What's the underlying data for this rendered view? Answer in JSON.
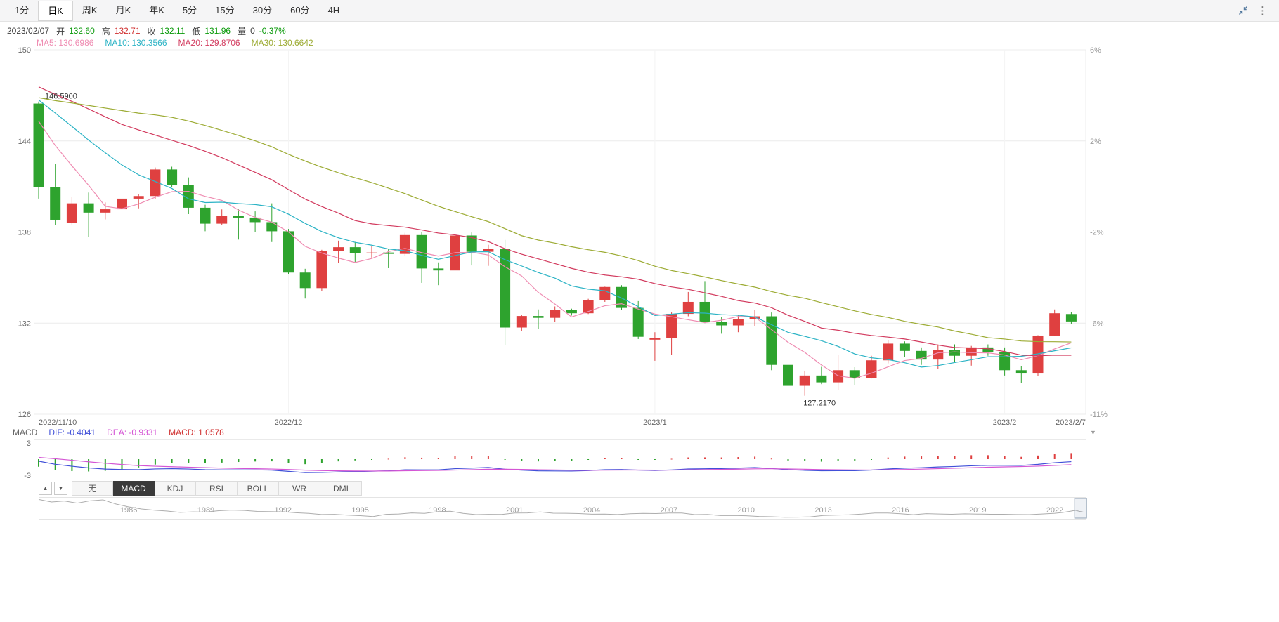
{
  "toolbar": {
    "tabs": [
      {
        "label": "1分",
        "active": false
      },
      {
        "label": "日K",
        "active": true
      },
      {
        "label": "周K",
        "active": false
      },
      {
        "label": "月K",
        "active": false
      },
      {
        "label": "年K",
        "active": false
      },
      {
        "label": "5分",
        "active": false
      },
      {
        "label": "15分",
        "active": false
      },
      {
        "label": "30分",
        "active": false
      },
      {
        "label": "60分",
        "active": false
      },
      {
        "label": "4H",
        "active": false
      }
    ],
    "more_glyph": "⋮"
  },
  "info_bar": {
    "date": "2023/02/07",
    "fields": [
      {
        "key": "open",
        "label": "开",
        "value": "132.60",
        "tone": "down"
      },
      {
        "key": "high",
        "label": "高",
        "value": "132.71",
        "tone": "up"
      },
      {
        "key": "close",
        "label": "收",
        "value": "132.11",
        "tone": "down"
      },
      {
        "key": "low",
        "label": "低",
        "value": "131.96",
        "tone": "down"
      },
      {
        "key": "volume",
        "label": "量",
        "value": "0",
        "tone": "neutral"
      }
    ],
    "change": {
      "value": "-0.37%",
      "tone": "down"
    }
  },
  "ma_bar": [
    {
      "label": "MA5:",
      "value": "130.6986",
      "color": "#ef8cb2"
    },
    {
      "label": "MA10:",
      "value": "130.3566",
      "color": "#2bb3c5"
    },
    {
      "label": "MA20:",
      "value": "129.8706",
      "color": "#d23a5e"
    },
    {
      "label": "MA30:",
      "value": "130.6642",
      "color": "#9cab33"
    }
  ],
  "colors": {
    "up": "#df4040",
    "down": "#2ea32e",
    "text_up": "#d03030",
    "text_down": "#0a9a0a",
    "neutral": "#3c3c3c",
    "ma5": "#ef8cb2",
    "ma10": "#2bb3c5",
    "ma20": "#d23a5e",
    "ma30": "#9cab33",
    "dif": "#4150d8",
    "dea": "#d455d4",
    "macd_value": "#d03030",
    "axis": "#666666",
    "axis_right": "#999999",
    "grid": "#ececec"
  },
  "chart_data": {
    "type": "candlestick",
    "ylim": [
      126,
      150
    ],
    "y_axis_labels": [
      "150",
      "144",
      "138",
      "132",
      "126"
    ],
    "y_axis_right_labels": [
      "6%",
      "2%",
      "-2%",
      "-6%",
      "-11%"
    ],
    "x_labels": [
      {
        "label": "2022/11/10",
        "index": 0,
        "align": "start"
      },
      {
        "label": "2022/12",
        "index": 15,
        "align": "middle"
      },
      {
        "label": "2023/1",
        "index": 37,
        "align": "middle"
      },
      {
        "label": "2023/2",
        "index": 58,
        "align": "middle"
      },
      {
        "label": "2023/2/7",
        "index": 62,
        "align": "end"
      }
    ],
    "annotations": {
      "high": "146.5900",
      "low": "127.2170"
    },
    "candle_format": [
      "date",
      "open",
      "high",
      "low",
      "close"
    ],
    "candles": [
      [
        "2022/11/10",
        146.46,
        146.59,
        140.2,
        140.98
      ],
      [
        "2022/11/11",
        140.98,
        142.48,
        138.46,
        138.81
      ],
      [
        "2022/11/14",
        138.6,
        140.3,
        138.5,
        139.89
      ],
      [
        "2022/11/15",
        139.89,
        140.6,
        137.67,
        139.28
      ],
      [
        "2022/11/16",
        139.28,
        139.95,
        138.83,
        139.5
      ],
      [
        "2022/11/17",
        139.5,
        140.4,
        139.07,
        140.2
      ],
      [
        "2022/11/18",
        140.2,
        140.49,
        139.56,
        140.37
      ],
      [
        "2022/11/21",
        140.37,
        142.25,
        140.15,
        142.12
      ],
      [
        "2022/11/22",
        142.12,
        142.3,
        140.95,
        141.1
      ],
      [
        "2022/11/23",
        141.1,
        141.6,
        139.18,
        139.6
      ],
      [
        "2022/11/24",
        139.6,
        139.8,
        138.05,
        138.55
      ],
      [
        "2022/11/25",
        138.55,
        139.49,
        138.46,
        139.05
      ],
      [
        "2022/11/28",
        139.05,
        139.5,
        137.5,
        138.95
      ],
      [
        "2022/11/29",
        138.95,
        139.36,
        138.0,
        138.65
      ],
      [
        "2022/11/30",
        138.65,
        139.89,
        137.34,
        138.05
      ],
      [
        "2022/12/01",
        138.05,
        138.2,
        135.25,
        135.33
      ],
      [
        "2022/12/02",
        135.33,
        135.58,
        133.62,
        134.31
      ],
      [
        "2022/12/05",
        134.31,
        136.83,
        134.13,
        136.73
      ],
      [
        "2022/12/06",
        136.73,
        137.43,
        135.95,
        137.0
      ],
      [
        "2022/12/07",
        137.0,
        137.35,
        136.02,
        136.6
      ],
      [
        "2022/12/08",
        136.6,
        137.05,
        136.32,
        136.65
      ],
      [
        "2022/12/09",
        136.65,
        136.9,
        135.62,
        136.56
      ],
      [
        "2022/12/12",
        136.56,
        137.95,
        136.4,
        137.8
      ],
      [
        "2022/12/13",
        137.8,
        137.98,
        134.65,
        135.6
      ],
      [
        "2022/12/14",
        135.6,
        136.0,
        134.5,
        135.47
      ],
      [
        "2022/12/15",
        135.47,
        138.1,
        135.0,
        137.77
      ],
      [
        "2022/12/16",
        137.77,
        137.97,
        135.8,
        136.7
      ],
      [
        "2022/12/19",
        136.7,
        137.16,
        135.77,
        136.9
      ],
      [
        "2022/12/20",
        136.9,
        137.48,
        130.58,
        131.71
      ],
      [
        "2022/12/21",
        131.71,
        132.55,
        131.5,
        132.47
      ],
      [
        "2022/12/22",
        132.47,
        132.9,
        131.6,
        132.35
      ],
      [
        "2022/12/23",
        132.35,
        133.1,
        132.1,
        132.85
      ],
      [
        "2022/12/26",
        132.85,
        132.95,
        132.5,
        132.65
      ],
      [
        "2022/12/27",
        132.65,
        133.6,
        132.6,
        133.5
      ],
      [
        "2022/12/28",
        133.5,
        134.4,
        133.4,
        134.38
      ],
      [
        "2022/12/29",
        134.38,
        134.5,
        132.87,
        133.0
      ],
      [
        "2022/12/30",
        133.0,
        133.45,
        130.95,
        131.1
      ],
      [
        "2023/01/03",
        130.91,
        131.4,
        129.52,
        131.01
      ],
      [
        "2023/01/04",
        131.01,
        132.7,
        129.9,
        132.61
      ],
      [
        "2023/01/05",
        132.61,
        134.05,
        132.45,
        133.4
      ],
      [
        "2023/01/06",
        133.4,
        134.77,
        132.0,
        132.08
      ],
      [
        "2023/01/09",
        132.08,
        132.4,
        131.3,
        131.85
      ],
      [
        "2023/01/10",
        131.85,
        132.5,
        131.4,
        132.25
      ],
      [
        "2023/01/11",
        132.25,
        132.85,
        131.8,
        132.45
      ],
      [
        "2023/01/12",
        132.45,
        132.7,
        128.9,
        129.25
      ],
      [
        "2023/01/13",
        129.25,
        129.5,
        127.46,
        127.87
      ],
      [
        "2023/01/16",
        127.87,
        128.87,
        127.217,
        128.55
      ],
      [
        "2023/01/17",
        128.55,
        129.12,
        127.98,
        128.1
      ],
      [
        "2023/01/18",
        128.1,
        129.9,
        127.57,
        128.9
      ],
      [
        "2023/01/19",
        128.9,
        129.1,
        127.9,
        128.4
      ],
      [
        "2023/01/20",
        128.4,
        129.85,
        128.35,
        129.55
      ],
      [
        "2023/01/23",
        129.55,
        130.89,
        129.35,
        130.65
      ],
      [
        "2023/01/24",
        130.65,
        130.8,
        129.75,
        130.17
      ],
      [
        "2023/01/25",
        130.17,
        130.4,
        129.25,
        129.6
      ],
      [
        "2023/01/26",
        129.6,
        130.6,
        129.0,
        130.25
      ],
      [
        "2023/01/27",
        130.25,
        130.6,
        129.4,
        129.85
      ],
      [
        "2023/01/30",
        129.85,
        130.5,
        129.2,
        130.4
      ],
      [
        "2023/01/31",
        130.4,
        130.6,
        129.85,
        130.1
      ],
      [
        "2023/02/01",
        130.1,
        130.4,
        128.55,
        128.9
      ],
      [
        "2023/02/02",
        128.9,
        129.15,
        128.08,
        128.68
      ],
      [
        "2023/02/03",
        128.68,
        131.2,
        128.5,
        131.18
      ],
      [
        "2023/02/06",
        131.18,
        132.9,
        131.15,
        132.65
      ],
      [
        "2023/02/07",
        132.6,
        132.71,
        131.96,
        132.11
      ]
    ],
    "prior_closes_for_ma": [
      144.45,
      144.75,
      144.55,
      144.1,
      144.65,
      145.15,
      145.35,
      145.73,
      145.85,
      146.92,
      147.22,
      148.75,
      149.05,
      149.25,
      149.9,
      150.15,
      147.65,
      148.95,
      147.95,
      146.35,
      146.25,
      147.45,
      148.7,
      148.25,
      147.85,
      148.25,
      146.8,
      146.6,
      145.65,
      146.45
    ],
    "ma_periods": [
      5,
      10,
      20,
      30
    ]
  },
  "macd": {
    "label": "MACD",
    "values": [
      {
        "label": "DIF:",
        "value": "-0.4041",
        "colorKey": "dif"
      },
      {
        "label": "DEA:",
        "value": "-0.9331",
        "colorKey": "dea"
      },
      {
        "label": "MACD:",
        "value": "1.0578",
        "colorKey": "macd_value"
      }
    ],
    "y_labels": [
      "3",
      "-3"
    ],
    "range": [
      -3,
      3
    ]
  },
  "indicator_bar": {
    "up_glyph": "▲",
    "down_glyph": "▼",
    "tabs": [
      {
        "label": "无",
        "active": false
      },
      {
        "label": "MACD",
        "active": true
      },
      {
        "label": "KDJ",
        "active": false
      },
      {
        "label": "RSI",
        "active": false
      },
      {
        "label": "BOLL",
        "active": false
      },
      {
        "label": "WR",
        "active": false
      },
      {
        "label": "DMI",
        "active": false
      }
    ]
  },
  "navigator": {
    "years": [
      "1986",
      "1989",
      "1992",
      "1995",
      "1998",
      "2001",
      "2004",
      "2007",
      "2010",
      "2013",
      "2016",
      "2019",
      "2022"
    ],
    "year_range": [
      1982.5,
      2023.2
    ],
    "value_range": [
      75,
      265
    ],
    "selection_years": [
      2022.85,
      2023.15
    ],
    "points": [
      [
        1982.5,
        262
      ],
      [
        1983,
        236
      ],
      [
        1983.5,
        246
      ],
      [
        1984,
        224
      ],
      [
        1984.5,
        248
      ],
      [
        1985,
        258
      ],
      [
        1985.5,
        215
      ],
      [
        1986,
        185
      ],
      [
        1986.5,
        163
      ],
      [
        1987,
        150
      ],
      [
        1987.5,
        141
      ],
      [
        1988,
        127
      ],
      [
        1988.5,
        133
      ],
      [
        1989,
        131
      ],
      [
        1989.5,
        144
      ],
      [
        1990,
        151
      ],
      [
        1990.5,
        147
      ],
      [
        1991,
        137
      ],
      [
        1991.5,
        135
      ],
      [
        1992,
        133
      ],
      [
        1992.5,
        123
      ],
      [
        1993,
        117
      ],
      [
        1993.5,
        105
      ],
      [
        1994,
        107
      ],
      [
        1994.5,
        99
      ],
      [
        1995,
        93
      ],
      [
        1995.5,
        84
      ],
      [
        1996,
        107
      ],
      [
        1996.5,
        111
      ],
      [
        1997,
        122
      ],
      [
        1997.5,
        117
      ],
      [
        1998,
        134
      ],
      [
        1998.5,
        139
      ],
      [
        1999,
        117
      ],
      [
        1999.5,
        104
      ],
      [
        2000,
        107
      ],
      [
        2000.5,
        106
      ],
      [
        2001,
        121
      ],
      [
        2001.5,
        122
      ],
      [
        2002,
        132
      ],
      [
        2002.5,
        119
      ],
      [
        2003,
        118
      ],
      [
        2003.5,
        115
      ],
      [
        2004,
        109
      ],
      [
        2004.5,
        110
      ],
      [
        2005,
        105
      ],
      [
        2005.5,
        113
      ],
      [
        2006,
        117
      ],
      [
        2006.5,
        115
      ],
      [
        2007,
        121
      ],
      [
        2007.5,
        121
      ],
      [
        2008,
        104
      ],
      [
        2008.5,
        106
      ],
      [
        2009,
        94
      ],
      [
        2009.5,
        95
      ],
      [
        2010,
        92
      ],
      [
        2010.5,
        85
      ],
      [
        2011,
        82
      ],
      [
        2011.5,
        77
      ],
      [
        2012,
        78
      ],
      [
        2012.5,
        81
      ],
      [
        2013,
        95
      ],
      [
        2013.5,
        99
      ],
      [
        2014,
        102
      ],
      [
        2014.5,
        110
      ],
      [
        2015,
        121
      ],
      [
        2015.5,
        121
      ],
      [
        2016,
        113
      ],
      [
        2016.5,
        103
      ],
      [
        2017,
        114
      ],
      [
        2017.5,
        111
      ],
      [
        2018,
        108
      ],
      [
        2018.5,
        112
      ],
      [
        2019,
        110
      ],
      [
        2019.5,
        108
      ],
      [
        2020,
        108
      ],
      [
        2020.5,
        105
      ],
      [
        2021,
        104
      ],
      [
        2021.5,
        111
      ],
      [
        2022,
        118
      ],
      [
        2022.3,
        126
      ],
      [
        2022.6,
        139
      ],
      [
        2022.8,
        149
      ],
      [
        2022.95,
        138
      ],
      [
        2023.1,
        131
      ]
    ]
  }
}
